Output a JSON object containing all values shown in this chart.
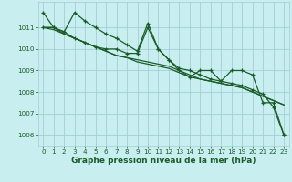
{
  "title": "Graphe pression niveau de la mer (hPa)",
  "bg_color": "#c8eef0",
  "grid_color": "#a0cfd4",
  "line_color": "#1a5c28",
  "xlim": [
    -0.5,
    23.5
  ],
  "ylim": [
    1005.5,
    1012.2
  ],
  "xticks": [
    0,
    1,
    2,
    3,
    4,
    5,
    6,
    7,
    8,
    9,
    10,
    11,
    12,
    13,
    14,
    15,
    16,
    17,
    18,
    19,
    20,
    21,
    22,
    23
  ],
  "yticks": [
    1006,
    1007,
    1008,
    1009,
    1010,
    1011
  ],
  "series": [
    {
      "x": [
        0,
        1,
        2,
        3,
        4,
        5,
        6,
        7,
        8,
        9,
        10,
        11,
        12,
        13,
        14,
        15,
        16,
        17,
        18,
        19,
        20,
        21,
        22,
        23
      ],
      "y": [
        1011.7,
        1011.0,
        1010.8,
        1011.7,
        1011.3,
        1011.0,
        1010.7,
        1010.5,
        1010.2,
        1009.9,
        1011.2,
        1010.0,
        1009.5,
        1009.0,
        1008.7,
        1009.0,
        1009.0,
        1008.5,
        1009.0,
        1009.0,
        1008.8,
        1007.5,
        1007.5,
        1006.0
      ],
      "marker": true
    },
    {
      "x": [
        0,
        1,
        2,
        3,
        4,
        5,
        6,
        7,
        8,
        9,
        10,
        11,
        12,
        13,
        14,
        15,
        16,
        17,
        18,
        19,
        20,
        21,
        22,
        23
      ],
      "y": [
        1011.0,
        1011.0,
        1010.8,
        1010.5,
        1010.3,
        1010.1,
        1010.0,
        1010.0,
        1009.8,
        1009.8,
        1011.0,
        1010.0,
        1009.5,
        1009.1,
        1009.0,
        1008.8,
        1008.6,
        1008.5,
        1008.4,
        1008.3,
        1008.1,
        1007.9,
        1007.3,
        1006.0
      ],
      "marker": true
    },
    {
      "x": [
        0,
        1,
        2,
        3,
        4,
        5,
        6,
        7,
        8,
        9,
        10,
        11,
        12,
        13,
        14,
        15,
        16,
        17,
        18,
        19,
        20,
        21,
        22,
        23
      ],
      "y": [
        1011.0,
        1011.0,
        1010.7,
        1010.5,
        1010.3,
        1010.1,
        1009.9,
        1009.7,
        1009.6,
        1009.5,
        1009.4,
        1009.3,
        1009.2,
        1009.0,
        1008.8,
        1008.6,
        1008.5,
        1008.4,
        1008.3,
        1008.2,
        1008.0,
        1007.8,
        1007.6,
        1007.4
      ],
      "marker": false
    },
    {
      "x": [
        0,
        1,
        2,
        3,
        4,
        5,
        6,
        7,
        8,
        9,
        10,
        11,
        12,
        13,
        14,
        15,
        16,
        17,
        18,
        19,
        20,
        21,
        22,
        23
      ],
      "y": [
        1011.0,
        1010.9,
        1010.7,
        1010.5,
        1010.3,
        1010.1,
        1009.9,
        1009.7,
        1009.6,
        1009.4,
        1009.3,
        1009.2,
        1009.1,
        1008.9,
        1008.7,
        1008.6,
        1008.5,
        1008.4,
        1008.3,
        1008.2,
        1008.0,
        1007.8,
        1007.6,
        1007.4
      ],
      "marker": false
    }
  ],
  "title_fontsize": 6.5,
  "tick_fontsize": 5.2
}
